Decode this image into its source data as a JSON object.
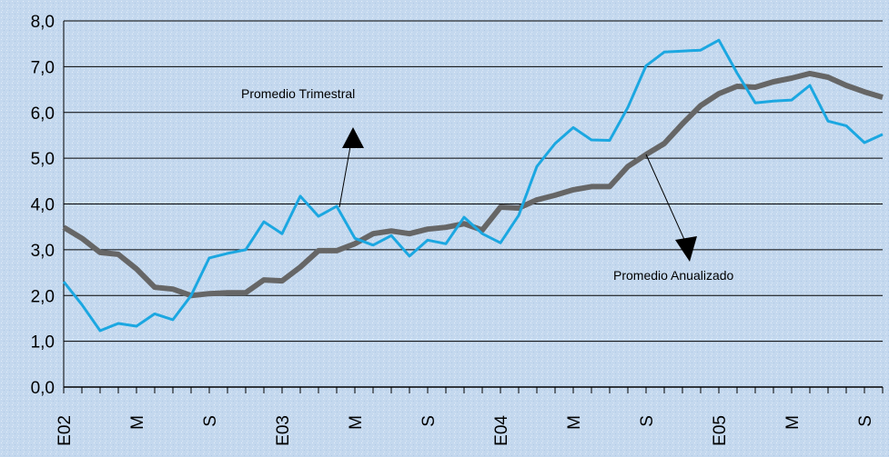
{
  "chart_data": {
    "type": "line",
    "categories": [
      "E02",
      null,
      null,
      null,
      "M",
      null,
      null,
      null,
      "S",
      null,
      null,
      null,
      "E03",
      null,
      null,
      null,
      "M",
      null,
      null,
      null,
      "S",
      null,
      null,
      null,
      "E04",
      null,
      null,
      null,
      "M",
      null,
      null,
      null,
      "S",
      null,
      null,
      null,
      "E05",
      null,
      null,
      null,
      "M",
      null,
      null,
      null,
      "S",
      null
    ],
    "series": [
      {
        "name": "Promedio Trimestral",
        "color": "#1ba7e1",
        "values": [
          2.3,
          1.8,
          1.23,
          1.39,
          1.33,
          1.6,
          1.47,
          2.0,
          2.82,
          2.92,
          3.0,
          3.61,
          3.35,
          4.17,
          3.73,
          3.95,
          3.25,
          3.1,
          3.31,
          2.86,
          3.21,
          3.13,
          3.71,
          3.35,
          3.15,
          3.75,
          4.82,
          5.32,
          5.67,
          5.4,
          5.39,
          6.11,
          7.02,
          7.32,
          7.34,
          7.36,
          7.58,
          6.86,
          6.21,
          6.25,
          6.27,
          6.59,
          5.81,
          5.71,
          5.34,
          5.52
        ]
      },
      {
        "name": "Promedio Anualizado",
        "color": "#666666",
        "values": [
          3.49,
          3.25,
          2.94,
          2.9,
          2.58,
          2.18,
          2.14,
          2.0,
          2.04,
          2.06,
          2.06,
          2.34,
          2.32,
          2.62,
          2.98,
          2.98,
          3.13,
          3.35,
          3.41,
          3.35,
          3.45,
          3.49,
          3.57,
          3.43,
          3.93,
          3.91,
          4.09,
          4.19,
          4.31,
          4.38,
          4.38,
          4.82,
          5.08,
          5.32,
          5.75,
          6.15,
          6.41,
          6.57,
          6.55,
          6.67,
          6.75,
          6.85,
          6.77,
          6.59,
          6.45,
          6.33
        ]
      }
    ],
    "ylim": [
      0,
      8
    ],
    "yticks": [
      {
        "value": 0,
        "label": "0,0"
      },
      {
        "value": 1,
        "label": "1,0"
      },
      {
        "value": 2,
        "label": "2,0"
      },
      {
        "value": 3,
        "label": "3,0"
      },
      {
        "value": 4,
        "label": "4,0"
      },
      {
        "value": 5,
        "label": "5,0"
      },
      {
        "value": 6,
        "label": "6,0"
      },
      {
        "value": 7,
        "label": "7,0"
      },
      {
        "value": 8,
        "label": "8,0"
      }
    ],
    "grid": true
  }
}
